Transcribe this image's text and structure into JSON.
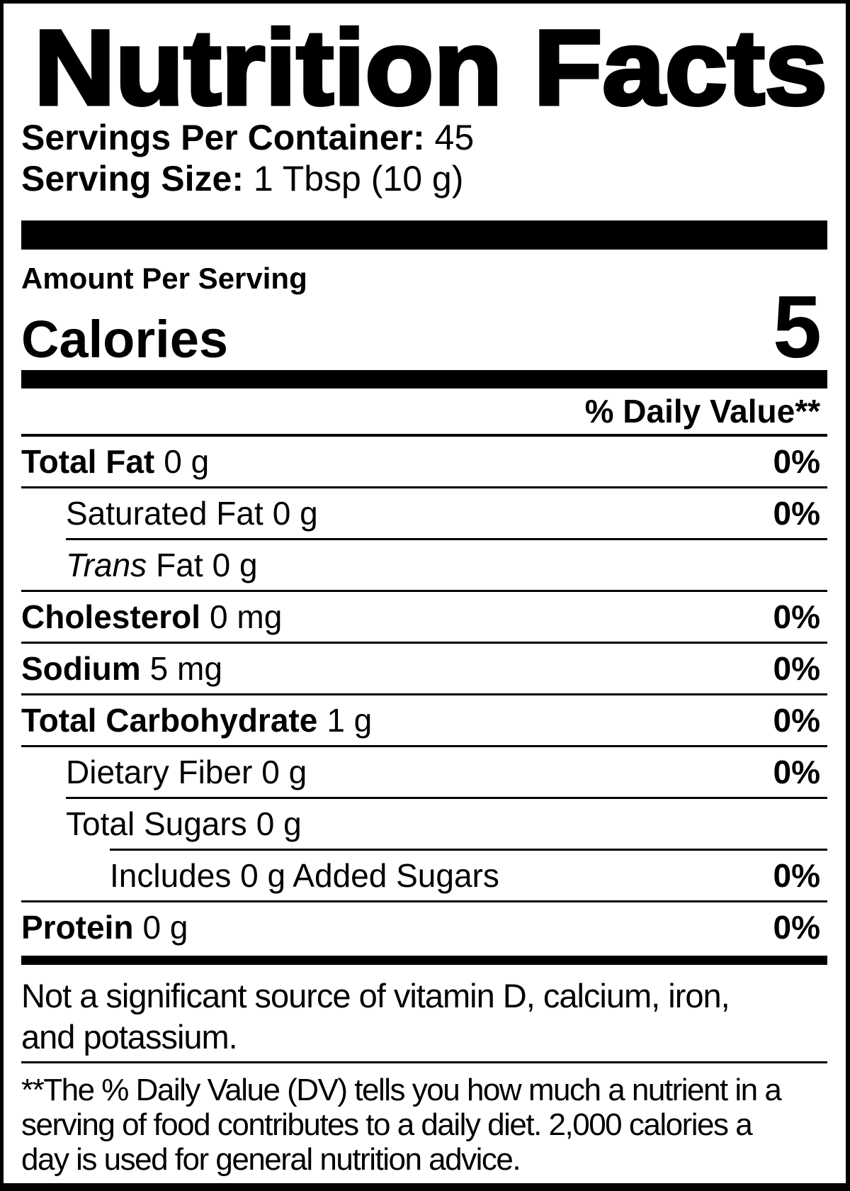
{
  "title": "Nutrition Facts",
  "servings_per_container": {
    "label": "Servings Per Container:",
    "value": "45"
  },
  "serving_size": {
    "label": "Serving Size:",
    "value": "1 Tbsp (10 g)"
  },
  "amount_per_serving": "Amount Per Serving",
  "calories": {
    "label": "Calories",
    "value": "5"
  },
  "daily_value_header": "% Daily Value**",
  "nutrients": [
    {
      "name": "Total Fat",
      "amount": "0 g",
      "dv": "0%"
    },
    {
      "name": "Saturated Fat",
      "amount": "0 g",
      "dv": "0%"
    },
    {
      "name_italic": "Trans",
      "name": "Fat",
      "amount": "0 g",
      "dv": ""
    },
    {
      "name": "Cholesterol",
      "amount": "0 mg",
      "dv": "0%"
    },
    {
      "name": "Sodium",
      "amount": "5 mg",
      "dv": "0%"
    },
    {
      "name": "Total Carbohydrate",
      "amount": "1 g",
      "dv": "0%"
    },
    {
      "name": "Dietary Fiber",
      "amount": "0 g",
      "dv": "0%"
    },
    {
      "name": "Total Sugars",
      "amount": "0 g",
      "dv": ""
    },
    {
      "name": "Includes 0 g Added Sugars",
      "amount": "",
      "dv": "0%"
    },
    {
      "name": "Protein",
      "amount": "0 g",
      "dv": "0%"
    }
  ],
  "disclaimer_lines": [
    "Not a significant source of vitamin D, calcium, iron,",
    "and potassium."
  ],
  "footnote_lines": [
    "**The % Daily Value (DV) tells you how much a nutrient in a",
    "serving of food contributes to a daily diet. 2,000 calories a",
    "day is used for general nutrition advice."
  ],
  "colors": {
    "ink": "#000000",
    "paper": "#ffffff"
  }
}
